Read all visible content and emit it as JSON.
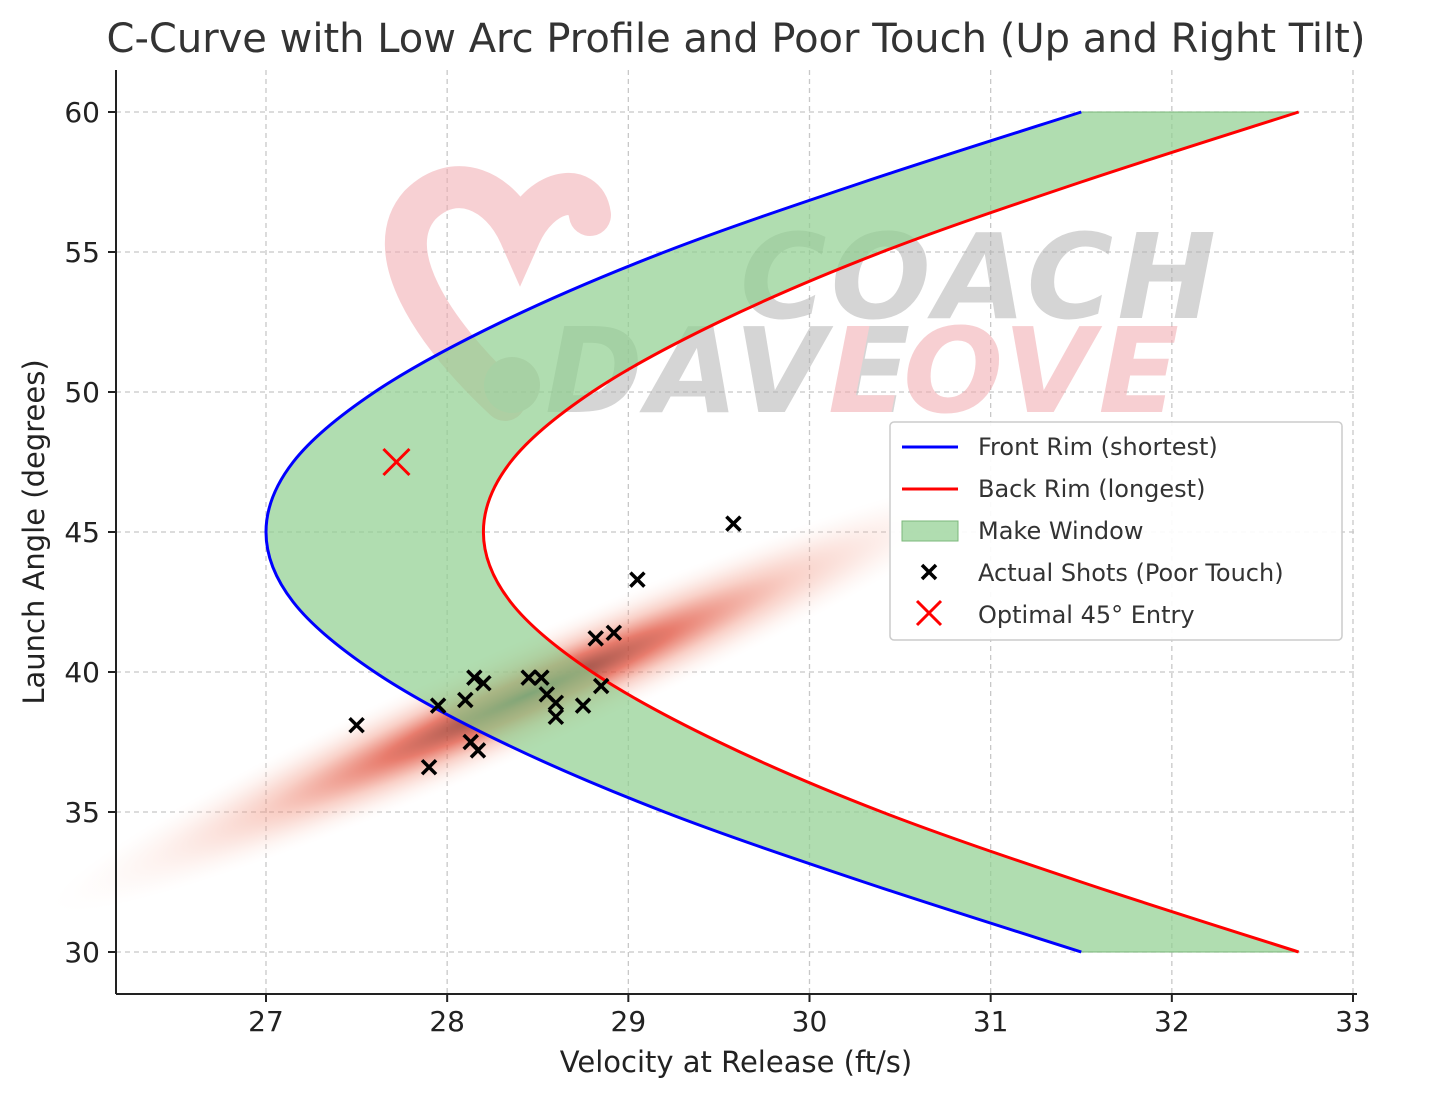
{
  "chart_data": {
    "type": "line",
    "title": "C-Curve with Low Arc Profile and Poor Touch (Up and Right Tilt)",
    "xlabel": "Velocity at Release (ft/s)",
    "ylabel": "Launch Angle (degrees)",
    "xlim": [
      26.2,
      33.0
    ],
    "ylim": [
      28.5,
      61.5
    ],
    "xticks": [
      27,
      28,
      29,
      30,
      31,
      32,
      33
    ],
    "yticks": [
      30,
      35,
      40,
      45,
      50,
      55,
      60
    ],
    "grid": true,
    "legend_position": "center-right",
    "series": [
      {
        "name": "Front Rim (shortest)",
        "kind": "line",
        "color": "#0000ff",
        "x": [
          31.5,
          30.3,
          29.2,
          28.3,
          27.6,
          27.15,
          27.0,
          27.15,
          27.6,
          28.3,
          29.2,
          30.3,
          31.5
        ],
        "y": [
          30,
          32.5,
          35,
          37.5,
          40,
          42.5,
          45,
          47.5,
          50,
          52.5,
          55,
          57.5,
          60
        ]
      },
      {
        "name": "Back Rim (longest)",
        "kind": "line",
        "color": "#ff0000",
        "x": [
          32.7,
          31.5,
          30.4,
          29.5,
          28.8,
          28.35,
          28.2,
          28.35,
          28.8,
          29.5,
          30.4,
          31.5,
          32.7
        ],
        "y": [
          30,
          32.5,
          35,
          37.5,
          40,
          42.5,
          45,
          47.5,
          50,
          52.5,
          55,
          57.5,
          60
        ]
      },
      {
        "name": "Make Window",
        "kind": "band",
        "color": "#8fce8f"
      },
      {
        "name": "Actual Shots (Poor Touch)",
        "kind": "scatter",
        "color": "#000000",
        "points": [
          [
            27.5,
            38.1
          ],
          [
            27.9,
            36.6
          ],
          [
            27.95,
            38.8
          ],
          [
            28.1,
            39.0
          ],
          [
            28.13,
            37.5
          ],
          [
            28.15,
            39.8
          ],
          [
            28.17,
            37.2
          ],
          [
            28.2,
            39.6
          ],
          [
            28.45,
            39.8
          ],
          [
            28.52,
            39.8
          ],
          [
            28.55,
            39.2
          ],
          [
            28.6,
            38.9
          ],
          [
            28.6,
            38.4
          ],
          [
            28.75,
            38.8
          ],
          [
            28.82,
            41.2
          ],
          [
            28.85,
            39.5
          ],
          [
            28.92,
            41.4
          ],
          [
            29.05,
            43.3
          ],
          [
            29.58,
            45.3
          ]
        ]
      },
      {
        "name": "Optimal 45° Entry",
        "kind": "marker",
        "color": "#ff0000",
        "point": [
          27.72,
          47.5
        ]
      }
    ],
    "density": {
      "center": [
        28.45,
        39.2
      ],
      "semi_axes_data": [
        2.3,
        3.6
      ],
      "color": "#e8604a"
    }
  },
  "watermark": {
    "line1": "COACH",
    "line2a": "DAVE",
    "line2b": "LOVE",
    "colors": {
      "gray": "#b3b3b3",
      "pink": "#f1a9ae"
    }
  }
}
